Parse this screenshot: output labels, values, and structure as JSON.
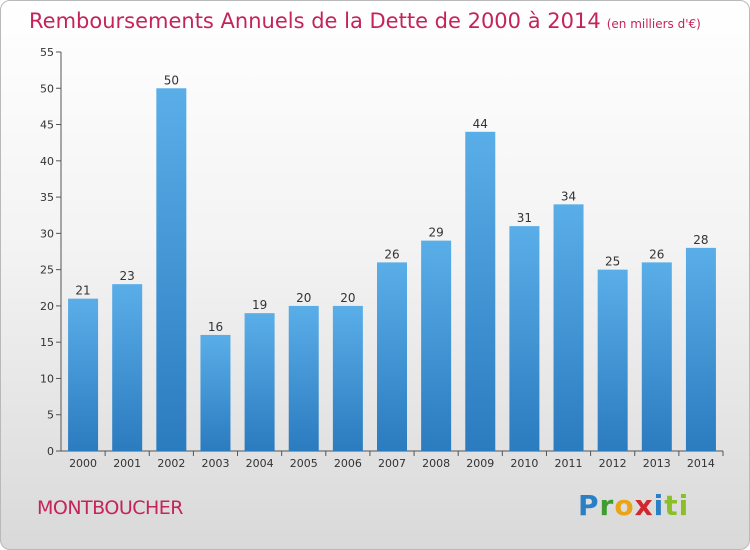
{
  "title": {
    "main": "Remboursements Annuels de la Dette de 2000 à 2014",
    "unit": "(en milliers d'€)"
  },
  "commune": "MONTBOUCHER",
  "logo": {
    "letters": [
      "P",
      "r",
      "o",
      "x",
      "i",
      "ti"
    ]
  },
  "colors": {
    "title": "#c4245a",
    "bar_top": "#5aaee8",
    "bar_bottom": "#2b7bbf"
  },
  "chart_data": {
    "type": "bar",
    "title": "Remboursements Annuels de la Dette de 2000 à 2014",
    "xlabel": "",
    "ylabel": "",
    "categories": [
      "2000",
      "2001",
      "2002",
      "2003",
      "2004",
      "2005",
      "2006",
      "2007",
      "2008",
      "2009",
      "2010",
      "2011",
      "2012",
      "2013",
      "2014"
    ],
    "values": [
      21,
      23,
      50,
      16,
      19,
      20,
      20,
      26,
      29,
      44,
      31,
      34,
      25,
      26,
      28
    ],
    "ylim": [
      0,
      55
    ],
    "yticks": [
      0,
      5,
      10,
      15,
      20,
      25,
      30,
      35,
      40,
      45,
      50,
      55
    ],
    "grid": false,
    "legend": "none"
  }
}
